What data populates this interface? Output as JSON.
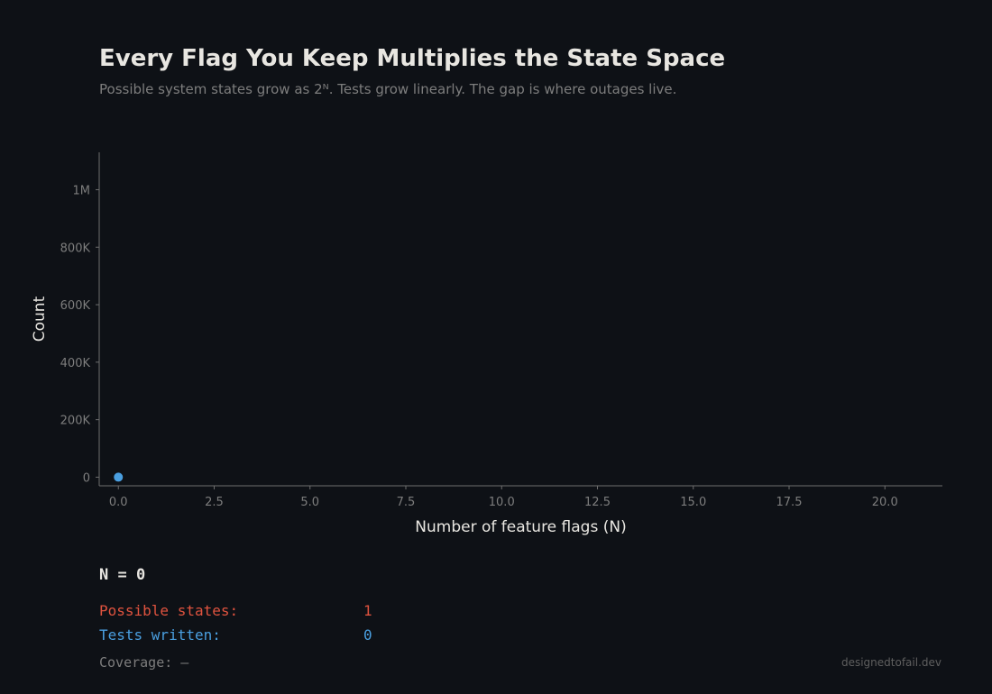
{
  "header": {
    "title": "Every Flag You Keep Multiplies the State Space",
    "subtitle": "Possible system states grow as 2ᴺ.  Tests grow linearly.  The gap is where outages live."
  },
  "chart_data": {
    "type": "scatter",
    "xlabel": "Number of feature flags (N)",
    "ylabel": "Count",
    "xlim": [
      -0.5,
      21.5
    ],
    "ylim": [
      -30000,
      1130000
    ],
    "x_ticks": [
      0,
      2.5,
      5,
      7.5,
      10,
      12.5,
      15,
      17.5,
      20
    ],
    "x_tick_labels": [
      "0.0",
      "2.5",
      "5.0",
      "7.5",
      "10.0",
      "12.5",
      "15.0",
      "17.5",
      "20.0"
    ],
    "y_ticks": [
      0,
      200000,
      400000,
      600000,
      800000,
      1000000
    ],
    "y_tick_labels": [
      "0",
      "200K",
      "400K",
      "600K",
      "800K",
      "1M"
    ],
    "grid": false,
    "series": [
      {
        "color": "#4a9fe0",
        "points": [
          {
            "x": 0,
            "y": 0
          }
        ]
      }
    ]
  },
  "readout": {
    "n_text": "N = 0",
    "states_label": "Possible states:",
    "states_value": "1",
    "tests_label": "Tests written:",
    "tests_value": "0",
    "coverage_text": "Coverage: —"
  },
  "credit": "designedtofail.dev",
  "colors": {
    "background": "#0e1116",
    "title": "#e8e6e1",
    "muted": "#7d7d7d",
    "axis": "#6e6e6e",
    "states": "#e0533f",
    "tests": "#4a9fe0"
  }
}
